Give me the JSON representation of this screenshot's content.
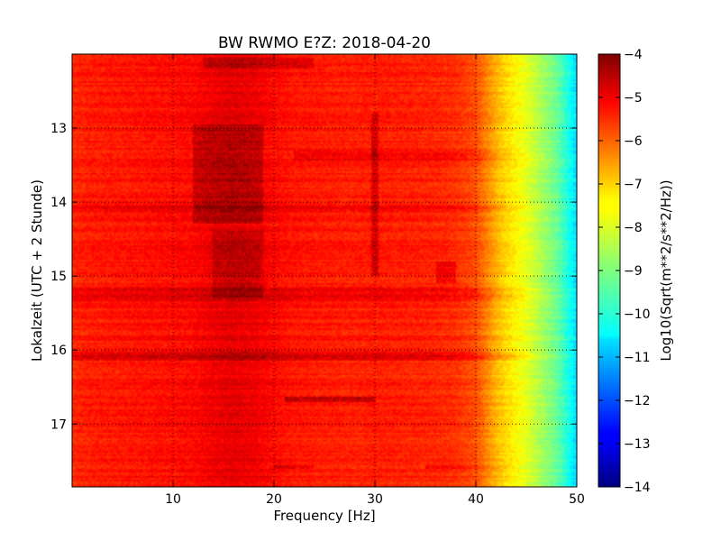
{
  "chart_data": {
    "type": "heatmap",
    "title": "BW RWMO E?Z: 2018-04-20",
    "xlabel": "Frequency [Hz]",
    "ylabel": "Lokalzeit (UTC + 2 Stunde)",
    "colorbar_label": "Log10(Sqrt(m**2/s**2/Hz))",
    "colormap": "jet",
    "xlim": [
      0,
      50
    ],
    "ylim": [
      12.0,
      17.85
    ],
    "y_inverted": true,
    "x_ticks": [
      10,
      20,
      30,
      40,
      50
    ],
    "x_tick_labels": [
      "10",
      "20",
      "30",
      "40",
      "50"
    ],
    "y_ticks": [
      13,
      14,
      15,
      16,
      17
    ],
    "y_tick_labels": [
      "13",
      "14",
      "15",
      "16",
      "17"
    ],
    "clim": [
      -14,
      -4
    ],
    "colorbar_ticks": [
      -4,
      -5,
      -6,
      -7,
      -8,
      -9,
      -10,
      -11,
      -12,
      -13,
      -14
    ],
    "colorbar_tick_labels": [
      "−4",
      "−5",
      "−6",
      "−7",
      "−8",
      "−9",
      "−10",
      "−11",
      "−12",
      "−13",
      "−14"
    ],
    "grid": "dotted",
    "spectrum_profile": {
      "frequency_hz": [
        0,
        2,
        5,
        10,
        12,
        14,
        16,
        18,
        20,
        22,
        25,
        28,
        30,
        33,
        36,
        38,
        40,
        41,
        42,
        43,
        44,
        45,
        46,
        47,
        48,
        49,
        50
      ],
      "log10_amplitude": [
        -5.6,
        -5.5,
        -5.45,
        -5.35,
        -5.3,
        -5.1,
        -5.0,
        -5.1,
        -5.3,
        -5.45,
        -5.5,
        -5.55,
        -5.5,
        -5.55,
        -5.6,
        -5.7,
        -6.0,
        -6.5,
        -7.0,
        -7.4,
        -7.7,
        -8.0,
        -8.4,
        -8.8,
        -9.2,
        -9.9,
        -10.6
      ]
    },
    "features": [
      {
        "type": "band",
        "time": [
          15.15,
          15.35
        ],
        "freq": [
          0,
          50
        ],
        "delta": 0.4
      },
      {
        "type": "band",
        "time": [
          16.02,
          16.15
        ],
        "freq": [
          0,
          50
        ],
        "delta": 0.55
      },
      {
        "type": "band",
        "time": [
          12.05,
          12.2
        ],
        "freq": [
          13,
          24
        ],
        "delta": 0.5
      },
      {
        "type": "band",
        "time": [
          13.3,
          13.45
        ],
        "freq": [
          22,
          50
        ],
        "delta": 0.4
      },
      {
        "type": "band",
        "time": [
          14.05,
          14.15
        ],
        "freq": [
          0,
          50
        ],
        "delta": 0.3
      },
      {
        "type": "band",
        "time": [
          16.62,
          16.7
        ],
        "freq": [
          21,
          30
        ],
        "delta": 0.8
      },
      {
        "type": "band",
        "time": [
          17.55,
          17.6
        ],
        "freq": [
          20,
          24
        ],
        "delta": 0.6
      },
      {
        "type": "band",
        "time": [
          17.55,
          17.6
        ],
        "freq": [
          35,
          44
        ],
        "delta": 0.5
      },
      {
        "type": "blob",
        "time": [
          12.95,
          14.3
        ],
        "freq": [
          12,
          19
        ],
        "delta": 0.55
      },
      {
        "type": "blob",
        "time": [
          14.4,
          15.3
        ],
        "freq": [
          14,
          19
        ],
        "delta": 0.4
      },
      {
        "type": "line",
        "time": [
          12.8,
          15.0
        ],
        "freq": [
          29.7,
          30.3
        ],
        "delta": 0.6
      },
      {
        "type": "blob",
        "time": [
          14.8,
          15.1
        ],
        "freq": [
          36,
          38
        ],
        "delta": 0.5
      }
    ]
  }
}
